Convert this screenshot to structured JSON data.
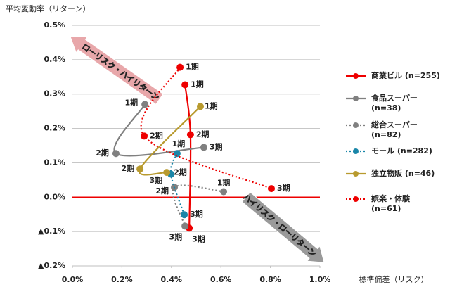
{
  "chart_data": {
    "type": "line",
    "y_axis_title": "平均変動率（リターン）",
    "x_axis_title": "標準偏差（リスク）",
    "xlim": [
      0,
      1.0
    ],
    "ylim": [
      -0.2,
      0.5
    ],
    "xticks": [
      {
        "value": 0,
        "label": "0.0%"
      },
      {
        "value": 0.2,
        "label": "0.2%"
      },
      {
        "value": 0.4,
        "label": "0.4%"
      },
      {
        "value": 0.6,
        "label": "0.6%"
      },
      {
        "value": 0.8,
        "label": "0.8%"
      },
      {
        "value": 1.0,
        "label": "1.0%"
      }
    ],
    "yticks": [
      {
        "value": -0.2,
        "label": "▲0.2%"
      },
      {
        "value": -0.1,
        "label": "▲0.1%"
      },
      {
        "value": 0,
        "label": "0.0%"
      },
      {
        "value": 0.1,
        "label": "0.1%"
      },
      {
        "value": 0.2,
        "label": "0.2%"
      },
      {
        "value": 0.3,
        "label": "0.3%"
      },
      {
        "value": 0.4,
        "label": "0.4%"
      },
      {
        "value": 0.5,
        "label": "0.5%"
      }
    ],
    "grid": true,
    "series": [
      {
        "name": "商業ビル (n=255)",
        "color": "#ee0000",
        "dash": "solid",
        "x": [
          0.455,
          0.477,
          0.472
        ],
        "values": [
          0.327,
          0.182,
          -0.09
        ],
        "labels": [
          "1期",
          "2期",
          "3期"
        ]
      },
      {
        "name": "食品スーパー (n=38)",
        "color": "#808080",
        "dash": "solid",
        "x": [
          0.293,
          0.176,
          0.531
        ],
        "values": [
          0.27,
          0.127,
          0.145
        ],
        "labels": [
          "1期",
          "2期",
          "3期"
        ]
      },
      {
        "name": "総合スーパー (n=82)",
        "color": "#808080",
        "dash": "dotted",
        "x": [
          0.611,
          0.412,
          0.455
        ],
        "values": [
          0.016,
          0.029,
          -0.084
        ],
        "labels": [
          "1期",
          "2期",
          "3期"
        ]
      },
      {
        "name": "モール (n=282)",
        "color": "#1a86a8",
        "dash": "dotted",
        "x": [
          0.423,
          0.398,
          0.452
        ],
        "values": [
          0.127,
          0.067,
          -0.051
        ],
        "labels": [
          "1期",
          "2期",
          "3期"
        ]
      },
      {
        "name": "独立物販 (n=46)",
        "color": "#b89a2e",
        "dash": "solid",
        "x": [
          0.517,
          0.273,
          0.381
        ],
        "values": [
          0.264,
          0.082,
          0.072
        ],
        "labels": [
          "1期",
          "2期",
          "3期"
        ]
      },
      {
        "name": "娯楽・体験 (n=61)",
        "color": "#ee0000",
        "dash": "dotted",
        "x": [
          0.435,
          0.29,
          0.804
        ],
        "values": [
          0.378,
          0.178,
          0.025
        ],
        "labels": [
          "1期",
          "2期",
          "3期"
        ]
      }
    ],
    "annotations": [
      "ローリスク・ハイリターン",
      "ハイリスク・ローリターン"
    ]
  }
}
